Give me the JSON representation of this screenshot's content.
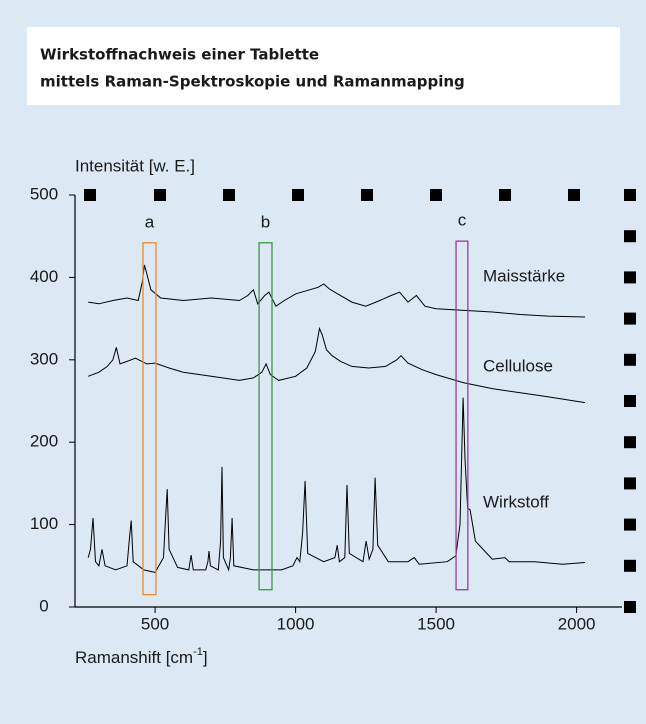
{
  "chart_data": {
    "type": "line",
    "title": [
      "Wirkstoffnachweis einer Tablette",
      "mittels Raman-Spektroskopie und Ramanmapping"
    ],
    "ylabel": "Intensität [w. E.]",
    "xlabel": [
      "Ramanshift [cm",
      "-1",
      "]"
    ],
    "xlim": [
      215,
      2190
    ],
    "ylim": [
      0,
      500
    ],
    "xticks": [
      500,
      1000,
      1500,
      2000
    ],
    "yticks": [
      0,
      100,
      200,
      300,
      400,
      500
    ],
    "series": [
      {
        "name": "Maisstärke",
        "color": "#000000",
        "x": [
          262,
          300,
          350,
          400,
          440,
          455,
          462,
          470,
          485,
          520,
          600,
          700,
          800,
          830,
          850,
          865,
          890,
          905,
          930,
          960,
          1000,
          1050,
          1080,
          1100,
          1120,
          1150,
          1200,
          1250,
          1300,
          1340,
          1370,
          1400,
          1430,
          1460,
          1500,
          1600,
          1700,
          1800,
          1900,
          2030
        ],
        "values": [
          370,
          368,
          372,
          375,
          372,
          395,
          415,
          405,
          385,
          375,
          372,
          375,
          372,
          378,
          385,
          368,
          378,
          382,
          365,
          372,
          380,
          385,
          388,
          392,
          386,
          380,
          370,
          365,
          372,
          378,
          382,
          370,
          378,
          365,
          362,
          360,
          358,
          355,
          353,
          352
        ]
      },
      {
        "name": "Cellulose",
        "color": "#000000",
        "x": [
          262,
          300,
          330,
          350,
          362,
          375,
          400,
          430,
          470,
          500,
          550,
          600,
          700,
          800,
          850,
          880,
          895,
          910,
          940,
          1000,
          1040,
          1070,
          1085,
          1095,
          1110,
          1130,
          1160,
          1200,
          1260,
          1320,
          1360,
          1375,
          1400,
          1450,
          1500,
          1600,
          1700,
          1800,
          1900,
          2030
        ],
        "values": [
          280,
          285,
          292,
          300,
          315,
          295,
          298,
          302,
          295,
          296,
          290,
          285,
          280,
          275,
          278,
          285,
          295,
          282,
          275,
          280,
          290,
          310,
          338,
          330,
          312,
          305,
          298,
          292,
          290,
          292,
          300,
          305,
          296,
          288,
          282,
          272,
          265,
          260,
          255,
          248
        ]
      },
      {
        "name": "Wirkstoff",
        "color": "#000000",
        "x": [
          262,
          270,
          279,
          288,
          300,
          311,
          322,
          360,
          400,
          408,
          415,
          422,
          460,
          500,
          530,
          536,
          543,
          550,
          580,
          620,
          628,
          636,
          680,
          688,
          692,
          697,
          725,
          733,
          738,
          743,
          762,
          768,
          774,
          780,
          850,
          950,
          990,
          1005,
          1015,
          1025,
          1034,
          1043,
          1100,
          1140,
          1148,
          1156,
          1175,
          1183,
          1191,
          1240,
          1251,
          1262,
          1275,
          1283,
          1292,
          1330,
          1400,
          1422,
          1440,
          1540,
          1570,
          1585,
          1596,
          1603,
          1612,
          1621,
          1640,
          1700,
          1745,
          1760,
          1850,
          1950,
          2030
        ],
        "values": [
          60,
          70,
          108,
          55,
          50,
          70,
          50,
          45,
          50,
          80,
          105,
          55,
          45,
          42,
          60,
          100,
          143,
          70,
          48,
          45,
          63,
          45,
          45,
          55,
          68,
          50,
          45,
          80,
          170,
          60,
          45,
          60,
          108,
          50,
          45,
          45,
          50,
          60,
          55,
          90,
          153,
          65,
          55,
          60,
          75,
          55,
          60,
          148,
          65,
          55,
          80,
          58,
          70,
          157,
          75,
          55,
          55,
          60,
          52,
          55,
          62,
          100,
          254,
          180,
          120,
          118,
          80,
          58,
          60,
          55,
          55,
          52,
          54
        ]
      }
    ],
    "annotations": [
      {
        "label": "a",
        "color": "#f0892a",
        "x": [
          457,
          503
        ],
        "y": [
          15,
          442
        ]
      },
      {
        "label": "b",
        "color": "#3c9a45",
        "x": [
          870,
          916
        ],
        "y": [
          21,
          442
        ]
      },
      {
        "label": "c",
        "color": "#9a3aa6",
        "x": [
          1571,
          1613
        ],
        "y": [
          21,
          444
        ]
      }
    ]
  }
}
